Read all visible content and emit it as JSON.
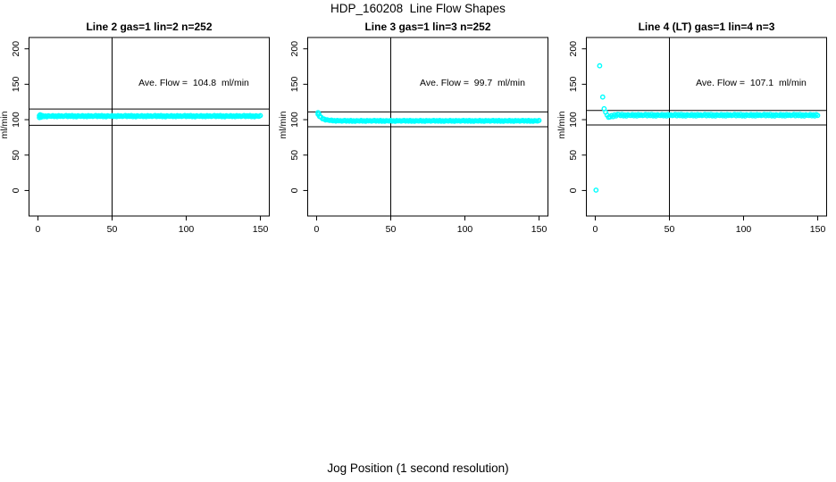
{
  "figure": {
    "title": "HDP_160208  Line Flow Shapes",
    "xlabel": "Jog Position (1 second resolution)"
  },
  "colors": {
    "points": "#00FFFF",
    "axis": "#000000",
    "text": "#000000",
    "background": "#FFFFFF"
  },
  "chart_data": [
    {
      "type": "scatter",
      "title": "Line 2 gas=1 lin=2 n=252",
      "annotation": "Ave. Flow =  104.8  ml/min",
      "ave_flow_ml_min": 104.8,
      "ylabel": "ml/min",
      "xticks": [
        0,
        50,
        100,
        150
      ],
      "yticks": [
        0,
        50,
        100,
        150,
        200
      ],
      "xlim": [
        -6,
        156
      ],
      "ylim": [
        -36,
        216
      ],
      "vline_x": 50,
      "hlines": [
        115,
        92
      ],
      "series": {
        "x_start": 1,
        "x_step": 1,
        "y": [
          105.6,
          104.6,
          105.9,
          104.3,
          105.2,
          104.1,
          105.5,
          105,
          104.7,
          105.8,
          104.4,
          105.3,
          104.2,
          105.7,
          104.8,
          105.4,
          104.5,
          105.1,
          105.9,
          104.4,
          105.6,
          104.6,
          105.9,
          104.3,
          105.2,
          104.1,
          105.5,
          105,
          104.7,
          105.8,
          104.4,
          105.3,
          104.2,
          105.7,
          104.8,
          105.4,
          104.5,
          105.1,
          105.9,
          104.4,
          105.6,
          104.6,
          105.9,
          104.3,
          105.2,
          104.1,
          105.5,
          105,
          104.7,
          105.8,
          104.4,
          105.3,
          104.2,
          105.7,
          104.8,
          105.4,
          104.5,
          105.1,
          105.9,
          104.4,
          105.6,
          104.6,
          105.9,
          104.3,
          105.2,
          104.1,
          105.5,
          105,
          104.7,
          105.8,
          104.4,
          105.3,
          104.2,
          105.7,
          104.8,
          105.4,
          104.5,
          105.1,
          105.9,
          104.4,
          105.6,
          104.6,
          105.9,
          104.3,
          105.2,
          104.1,
          105.5,
          105,
          104.7,
          105.8,
          104.4,
          105.3,
          104.2,
          105.7,
          104.8,
          105.4,
          104.5,
          105.1,
          105.9,
          104.4,
          105.6,
          104.6,
          105.9,
          104.3,
          105.2,
          104.1,
          105.5,
          105,
          104.7,
          105.8,
          104.4,
          105.3,
          104.2,
          105.7,
          104.8,
          105.4,
          104.5,
          105.1,
          105.9,
          104.4,
          105.6,
          104.6,
          105.9,
          104.3,
          105.2,
          104.1,
          105.5,
          105,
          104.7,
          105.8,
          104.4,
          105.3,
          104.2,
          105.7,
          104.8,
          105.4,
          104.5,
          105.1,
          105.9,
          104.4,
          105.6,
          104.6,
          105.9,
          104.3,
          105.2,
          104.1,
          105.5,
          105,
          104.7,
          105.8
        ]
      },
      "outliers": [
        [
          1,
          103
        ],
        [
          1.5,
          107
        ],
        [
          2,
          103.3
        ]
      ]
    },
    {
      "type": "scatter",
      "title": "Line 3 gas=1 lin=3 n=252",
      "annotation": "Ave. Flow =  99.7  ml/min",
      "ave_flow_ml_min": 99.7,
      "ylabel": "ml/min",
      "xticks": [
        0,
        50,
        100,
        150
      ],
      "yticks": [
        0,
        50,
        100,
        150,
        200
      ],
      "xlim": [
        -6,
        156
      ],
      "ylim": [
        -36,
        216
      ],
      "vline_x": 50,
      "hlines": [
        111,
        90
      ],
      "series": {
        "x_start": 1,
        "x_step": 1,
        "y": [
          107.5,
          104.4,
          103.6,
          101.2,
          100.9,
          99.5,
          100,
          99.3,
          98.8,
          99.4,
          98.3,
          98.8,
          97.9,
          98.9,
          98.3,
          98.6,
          98,
          98.4,
          98.9,
          97.9,
          98.7,
          98,
          98.9,
          97.8,
          98.4,
          97.7,
          98.7,
          98.3,
          98.1,
          98.9,
          97.9,
          98.5,
          97.7,
          98.8,
          98.2,
          98.6,
          98,
          98.4,
          98.9,
          97.9,
          98.7,
          98,
          98.9,
          97.8,
          98.4,
          97.7,
          98.7,
          98.3,
          98.1,
          98.9,
          97.9,
          98.5,
          97.7,
          98.8,
          98.2,
          98.6,
          98,
          98.4,
          98.9,
          97.9,
          98.7,
          98,
          98.9,
          97.8,
          98.4,
          97.7,
          98.7,
          98.3,
          98.1,
          98.9,
          97.9,
          98.5,
          97.7,
          98.8,
          98.2,
          98.6,
          98,
          98.4,
          98.9,
          97.9,
          98.7,
          98,
          98.9,
          97.8,
          98.4,
          97.7,
          98.7,
          98.3,
          98.1,
          98.9,
          97.9,
          98.5,
          97.7,
          98.8,
          98.2,
          98.6,
          98,
          98.4,
          98.9,
          97.9,
          98.7,
          98,
          98.9,
          97.8,
          98.4,
          97.7,
          98.7,
          98.3,
          98.1,
          98.9,
          97.9,
          98.5,
          97.7,
          98.8,
          98.2,
          98.6,
          98,
          98.4,
          98.9,
          97.9,
          98.7,
          98,
          98.9,
          97.8,
          98.4,
          97.7,
          98.7,
          98.3,
          98.1,
          98.9,
          97.9,
          98.5,
          97.7,
          98.8,
          98.2,
          98.6,
          98,
          98.4,
          98.9,
          97.9,
          98.7,
          98,
          98.9,
          97.8,
          98.4,
          97.7,
          98.7,
          98.3,
          98.1,
          98.9
        ]
      },
      "outliers": [
        [
          1,
          110
        ],
        [
          1.5,
          108.3
        ]
      ]
    },
    {
      "type": "scatter",
      "title": "Line 4 (LT) gas=1 lin=4 n=3",
      "annotation": "Ave. Flow =  107.1  ml/min",
      "ave_flow_ml_min": 107.1,
      "ylabel": "ml/min",
      "xticks": [
        0,
        50,
        100,
        150
      ],
      "yticks": [
        0,
        50,
        100,
        150,
        200
      ],
      "xlim": [
        -6,
        156
      ],
      "ylim": [
        -36,
        216
      ],
      "vline_x": 50,
      "hlines": [
        113,
        92.5
      ],
      "series": {
        "x_start": 6,
        "x_step": 1,
        "y": [
          115.5,
          110.5,
          106.5,
          103.4,
          103.9,
          105.9,
          104.3,
          106.8,
          105.2,
          107.4,
          107.1,
          105.8,
          107.5,
          105.4,
          106.6,
          105.1,
          107,
          106.3,
          105.9,
          107.3,
          105.5,
          106.7,
          105.3,
          107.2,
          106,
          106.8,
          105.7,
          106.4,
          107.5,
          105.5,
          107.1,
          105.8,
          107.5,
          105.4,
          106.6,
          105.1,
          107,
          106.3,
          105.9,
          107.3,
          105.5,
          106.7,
          105.3,
          107.2,
          106,
          106.8,
          105.7,
          106.4,
          107.5,
          105.5,
          107.1,
          105.8,
          107.5,
          105.4,
          106.6,
          105.1,
          107,
          106.3,
          105.9,
          107.3,
          105.5,
          106.7,
          105.3,
          107.2,
          106,
          106.8,
          105.7,
          106.4,
          107.5,
          105.5,
          107.1,
          105.8,
          107.5,
          105.4,
          106.6,
          105.1,
          107,
          106.3,
          105.9,
          107.3,
          105.5,
          106.7,
          105.3,
          107.2,
          106,
          106.8,
          105.7,
          106.4,
          107.5,
          105.5,
          107.1,
          105.8,
          107.5,
          105.4,
          106.6,
          105.1,
          107,
          106.3,
          105.9,
          107.3,
          105.5,
          106.7,
          105.3,
          107.2,
          106,
          106.8,
          105.7,
          106.4,
          107.5,
          105.5,
          107.1,
          105.8,
          107.5,
          105.4,
          106.6,
          105.1,
          107,
          106.3,
          105.9,
          107.3,
          105.5,
          106.7,
          105.3,
          107.2,
          106,
          106.8,
          105.7,
          106.4,
          107.5,
          105.5,
          107.1,
          105.8,
          107.5,
          105.4,
          106.6,
          105.1,
          107,
          106.3,
          105.9,
          107.3,
          105.5,
          106.7,
          105.3,
          107.2,
          106
        ]
      },
      "outliers": [
        [
          0.5,
          0.5
        ],
        [
          3,
          176
        ],
        [
          5,
          132
        ]
      ]
    }
  ]
}
